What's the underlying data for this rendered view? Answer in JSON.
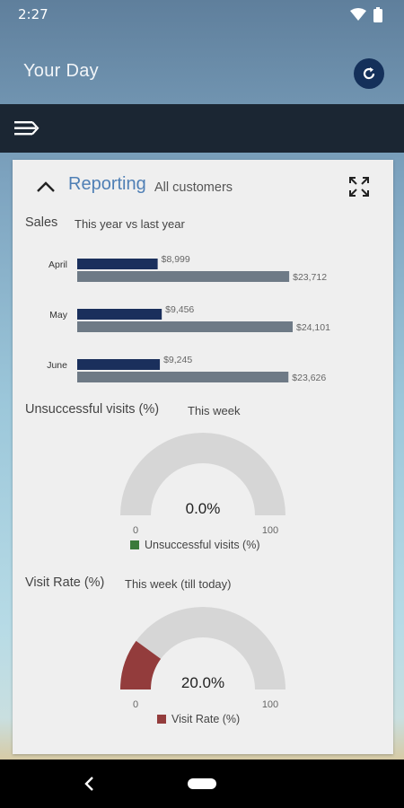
{
  "status_bar": {
    "time": "2:27"
  },
  "header": {
    "title": "Your Day"
  },
  "card": {
    "title": "Reporting",
    "subtitle": "All customers",
    "sales": {
      "title": "Sales",
      "subtitle": "This year vs last year"
    },
    "unsuccessful": {
      "title": "Unsuccessful visits (%)",
      "subtitle": "This week",
      "value_label": "0.0%",
      "min_label": "0",
      "max_label": "100",
      "legend": "Unsuccessful visits (%)"
    },
    "visit_rate": {
      "title": "Visit Rate (%)",
      "subtitle": "This week (till today)",
      "value_label": "20.0%",
      "min_label": "0",
      "max_label": "100",
      "legend": "Visit Rate (%)"
    }
  },
  "chart_data": [
    {
      "type": "bar",
      "orientation": "horizontal",
      "categories": [
        "April",
        "May",
        "June"
      ],
      "series": [
        {
          "values": [
            8999,
            9456,
            9245
          ],
          "labels": [
            "$8,999",
            "$9,456",
            "$9,245"
          ],
          "color": "#1a2f5c"
        },
        {
          "values": [
            23712,
            24101,
            23626
          ],
          "labels": [
            "$23,712",
            "$24,101",
            "$23,626"
          ],
          "color": "#6e7a86"
        }
      ]
    },
    {
      "type": "gauge",
      "value": 0.0,
      "range": [
        0,
        100
      ],
      "color": "#3a7a3a",
      "track_color": "#d6d6d6"
    },
    {
      "type": "gauge",
      "value": 20.0,
      "range": [
        0,
        100
      ],
      "color": "#933c3c",
      "track_color": "#d6d6d6"
    }
  ],
  "icons": {
    "wifi": "wifi-icon",
    "battery": "battery-icon",
    "refresh": "refresh-icon",
    "menu": "menu-icon",
    "collapse": "chevron-up-icon",
    "expand": "expand-icon",
    "back": "back-icon"
  }
}
